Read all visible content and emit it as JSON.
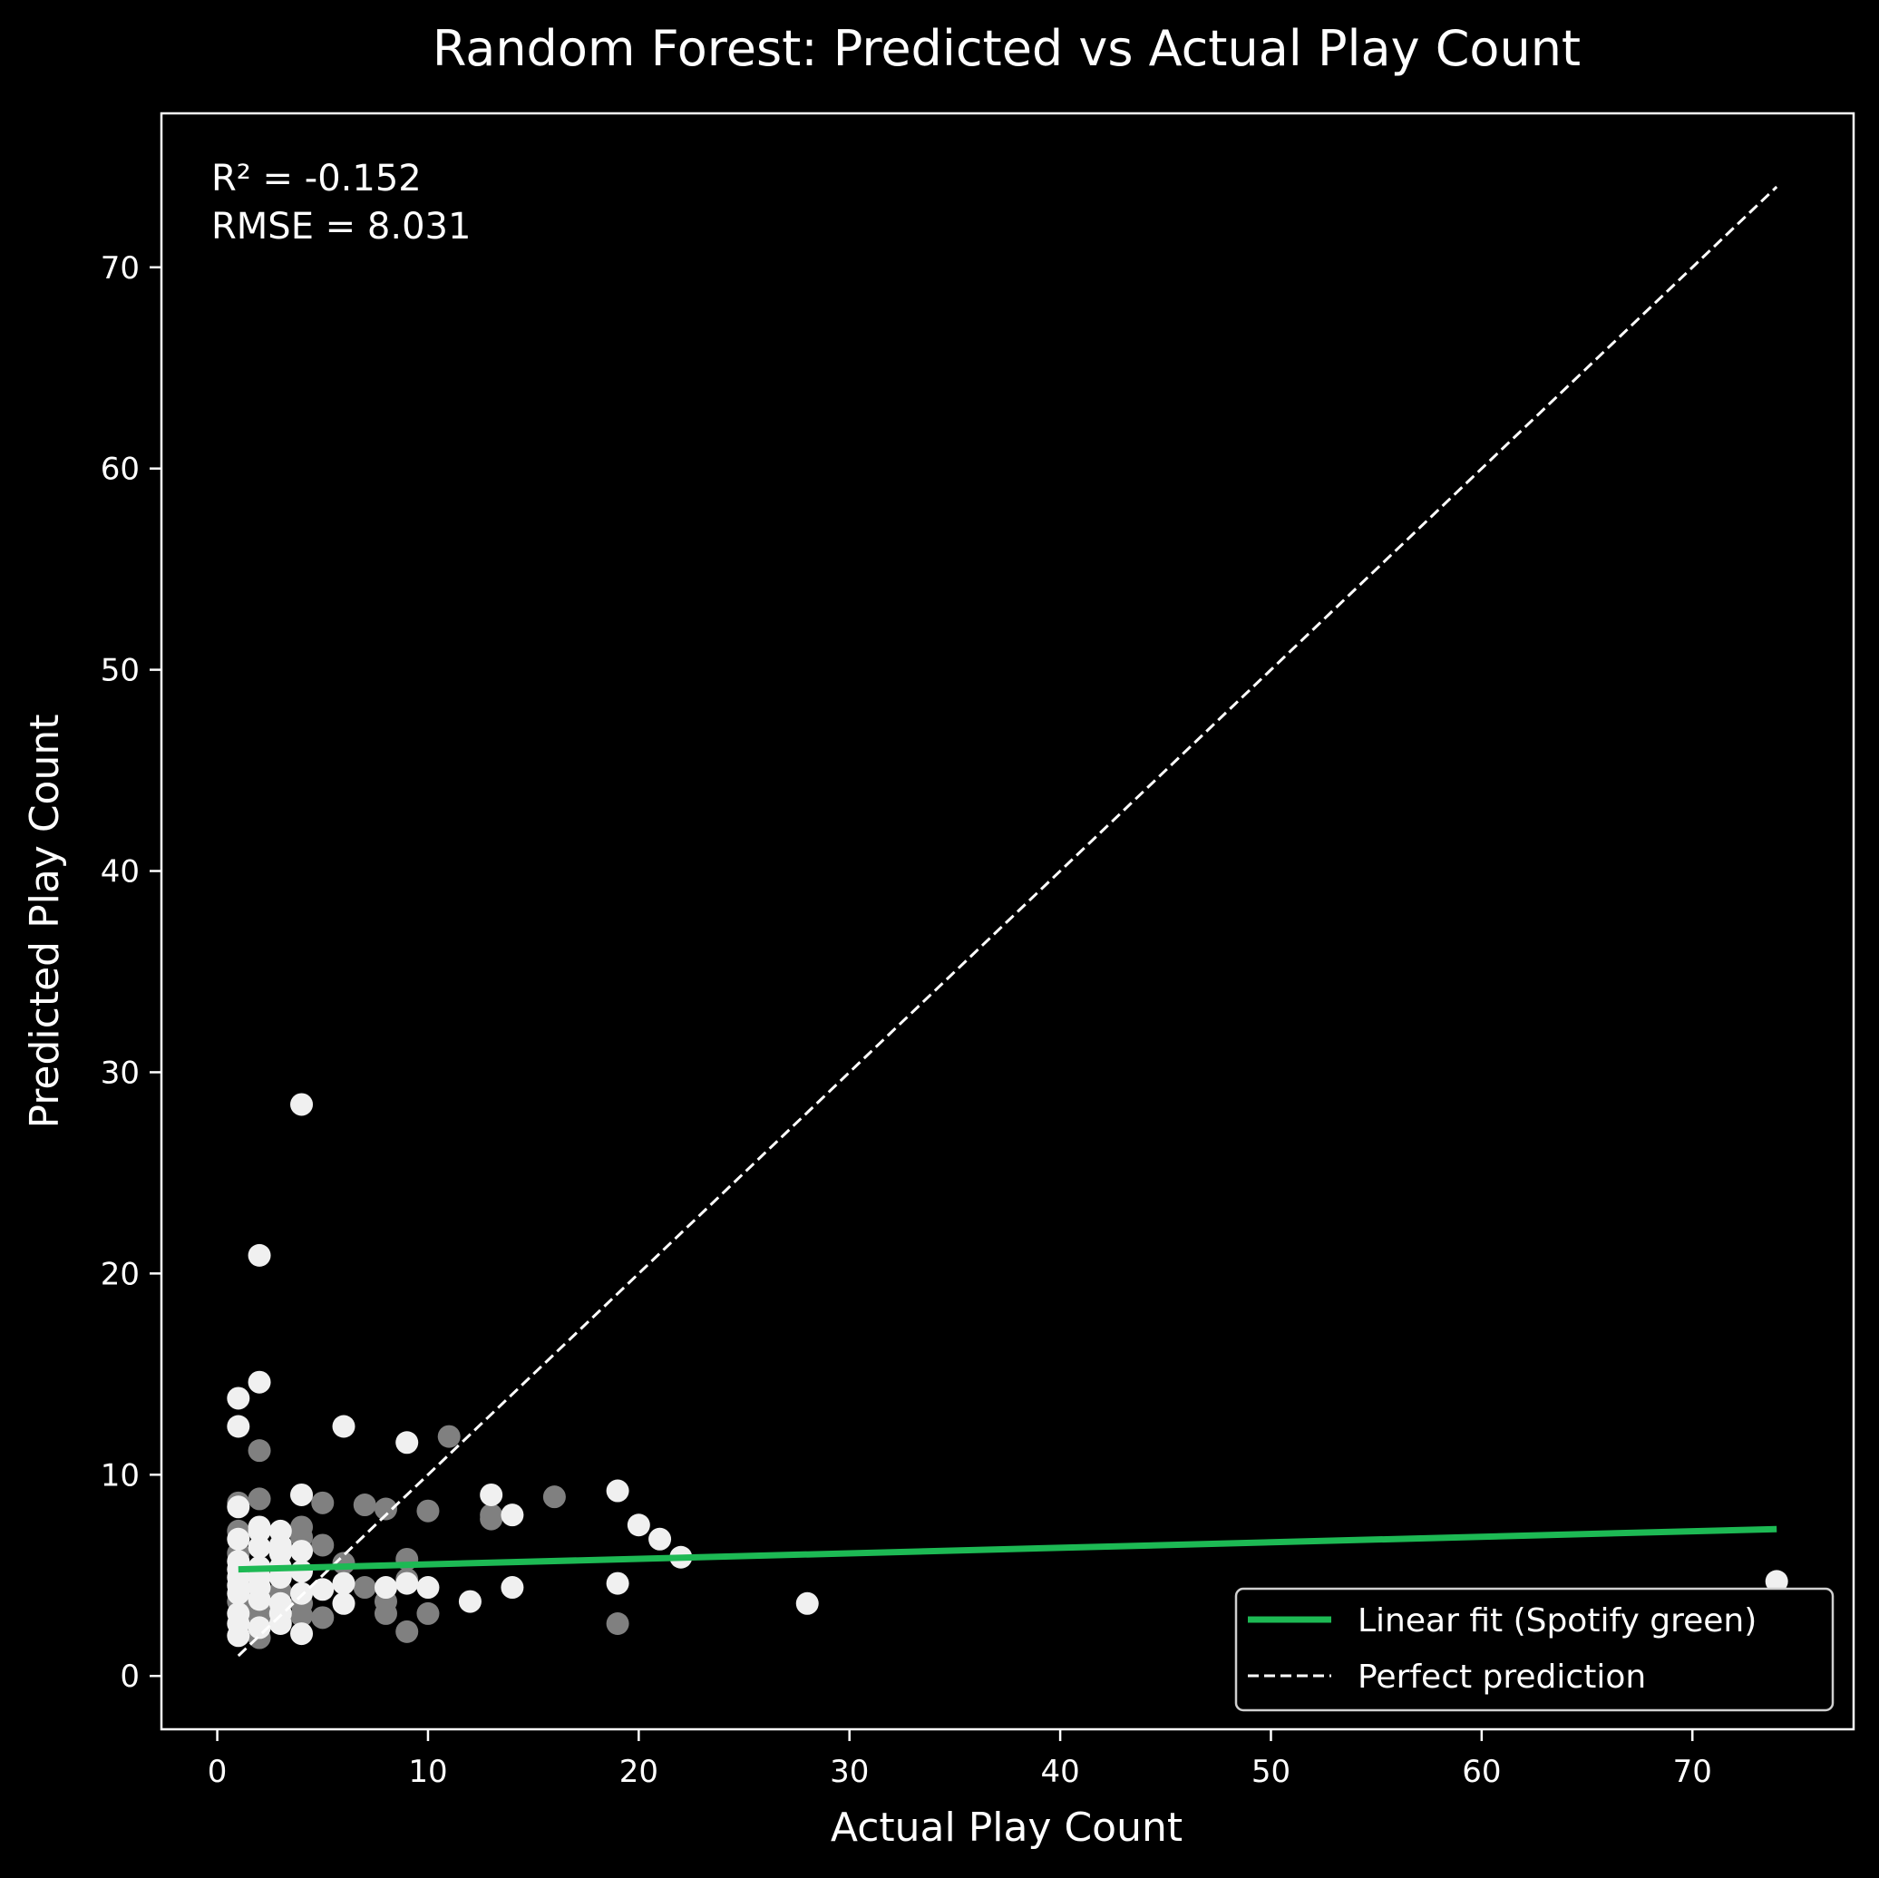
{
  "chart_data": {
    "type": "scatter",
    "title": "Random Forest: Predicted vs Actual Play Count",
    "xlabel": "Actual Play Count",
    "ylabel": "Predicted Play Count",
    "xlim": [
      -2.65,
      77.65
    ],
    "ylim": [
      -2.65,
      77.65
    ],
    "xticks": [
      0,
      10,
      20,
      30,
      40,
      50,
      60,
      70
    ],
    "yticks": [
      0,
      10,
      20,
      30,
      40,
      50,
      60,
      70
    ],
    "grid": false,
    "annotations": [
      "R² = -0.152",
      "RMSE = 8.031"
    ],
    "legend": {
      "location": "lower right",
      "entries": [
        "Linear fit (Spotify green)",
        "Perfect prediction"
      ]
    },
    "colors": {
      "background": "#000000",
      "fit": "#1DB954",
      "perfect": "#ffffff",
      "point_light": "#f0f0f0",
      "point_gray": "#808080"
    },
    "series": [
      {
        "kind": "points",
        "points": [
          [
            1,
            13.8,
            "light"
          ],
          [
            1,
            12.4,
            "light"
          ],
          [
            1,
            8.6,
            "gray"
          ],
          [
            1,
            8.4,
            "light"
          ],
          [
            1,
            7.2,
            "gray"
          ],
          [
            1,
            6.8,
            "light"
          ],
          [
            1,
            6.1,
            "gray"
          ],
          [
            1,
            5.7,
            "light"
          ],
          [
            1,
            5.3,
            "light"
          ],
          [
            1,
            4.9,
            "light"
          ],
          [
            1,
            4.5,
            "light"
          ],
          [
            1,
            4.1,
            "light"
          ],
          [
            1,
            3.7,
            "gray"
          ],
          [
            1,
            3.1,
            "light"
          ],
          [
            1,
            2.6,
            "light"
          ],
          [
            1,
            2.0,
            "light"
          ],
          [
            2,
            20.9,
            "light"
          ],
          [
            2,
            14.6,
            "light"
          ],
          [
            2,
            11.2,
            "gray"
          ],
          [
            2,
            8.8,
            "gray"
          ],
          [
            2,
            7.4,
            "light"
          ],
          [
            2,
            7.2,
            "light"
          ],
          [
            2,
            6.4,
            "light"
          ],
          [
            2,
            5.4,
            "light"
          ],
          [
            2,
            4.9,
            "light"
          ],
          [
            2,
            4.4,
            "light"
          ],
          [
            2,
            3.8,
            "light"
          ],
          [
            2,
            3.4,
            "gray"
          ],
          [
            2,
            3.0,
            "gray"
          ],
          [
            2,
            2.4,
            "light"
          ],
          [
            2,
            1.9,
            "gray"
          ],
          [
            3,
            7.2,
            "light"
          ],
          [
            3,
            6.5,
            "light"
          ],
          [
            3,
            6.1,
            "light"
          ],
          [
            3,
            5.4,
            "light"
          ],
          [
            3,
            4.9,
            "light"
          ],
          [
            3,
            4.2,
            "gray"
          ],
          [
            3,
            3.6,
            "light"
          ],
          [
            3,
            3.1,
            "light"
          ],
          [
            3,
            2.6,
            "light"
          ],
          [
            4,
            28.4,
            "light"
          ],
          [
            4,
            9.0,
            "light"
          ],
          [
            4,
            7.4,
            "gray"
          ],
          [
            4,
            6.9,
            "gray"
          ],
          [
            4,
            6.2,
            "light"
          ],
          [
            4,
            5.2,
            "light"
          ],
          [
            4,
            4.1,
            "light"
          ],
          [
            4,
            3.6,
            "gray"
          ],
          [
            4,
            3.0,
            "gray"
          ],
          [
            4,
            2.1,
            "light"
          ],
          [
            5,
            8.6,
            "gray"
          ],
          [
            5,
            6.5,
            "gray"
          ],
          [
            5,
            4.3,
            "light"
          ],
          [
            5,
            2.9,
            "gray"
          ],
          [
            6,
            12.4,
            "light"
          ],
          [
            6,
            5.6,
            "gray"
          ],
          [
            6,
            4.6,
            "light"
          ],
          [
            6,
            3.6,
            "light"
          ],
          [
            7,
            8.5,
            "gray"
          ],
          [
            7,
            4.4,
            "gray"
          ],
          [
            8,
            8.3,
            "gray"
          ],
          [
            8,
            4.4,
            "light"
          ],
          [
            8,
            3.7,
            "gray"
          ],
          [
            8,
            3.1,
            "gray"
          ],
          [
            9,
            11.6,
            "light"
          ],
          [
            9,
            5.8,
            "gray"
          ],
          [
            9,
            4.8,
            "gray"
          ],
          [
            9,
            4.6,
            "light"
          ],
          [
            9,
            2.2,
            "gray"
          ],
          [
            10,
            8.2,
            "gray"
          ],
          [
            10,
            4.4,
            "light"
          ],
          [
            10,
            3.1,
            "gray"
          ],
          [
            11,
            11.9,
            "gray"
          ],
          [
            12,
            3.7,
            "light"
          ],
          [
            13,
            9.0,
            "light"
          ],
          [
            13,
            8.0,
            "gray"
          ],
          [
            13,
            7.8,
            "gray"
          ],
          [
            14,
            8.0,
            "light"
          ],
          [
            14,
            4.4,
            "light"
          ],
          [
            16,
            8.9,
            "gray"
          ],
          [
            19,
            9.2,
            "light"
          ],
          [
            19,
            4.6,
            "light"
          ],
          [
            19,
            2.6,
            "gray"
          ],
          [
            20,
            7.5,
            "light"
          ],
          [
            21,
            6.8,
            "light"
          ],
          [
            22,
            5.9,
            "light"
          ],
          [
            28,
            3.6,
            "light"
          ],
          [
            74,
            4.7,
            "light"
          ]
        ]
      },
      {
        "name": "Linear fit (Spotify green)",
        "kind": "line",
        "x": [
          1,
          74
        ],
        "y": [
          5.3,
          7.3
        ]
      },
      {
        "name": "Perfect prediction",
        "kind": "dashed",
        "x": [
          1,
          74
        ],
        "y": [
          1,
          74
        ]
      }
    ]
  }
}
